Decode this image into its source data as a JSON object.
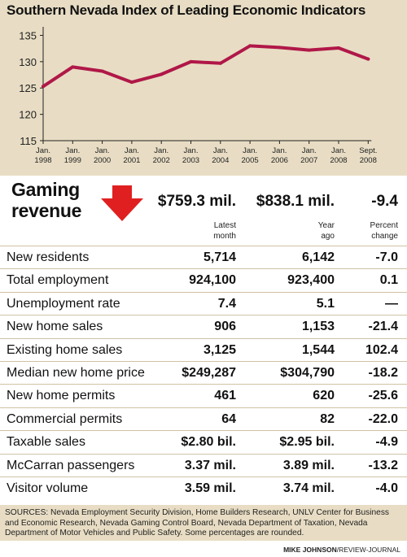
{
  "title": "Southern Nevada Index of Leading Economic Indicators",
  "chart_data": {
    "type": "line",
    "title": "Southern Nevada Index of Leading Economic Indicators",
    "x": [
      {
        "top": "Jan.",
        "bottom": "1998"
      },
      {
        "top": "Jan.",
        "bottom": "1999"
      },
      {
        "top": "Jan.",
        "bottom": "2000"
      },
      {
        "top": "Jan.",
        "bottom": "2001"
      },
      {
        "top": "Jan.",
        "bottom": "2002"
      },
      {
        "top": "Jan.",
        "bottom": "2003"
      },
      {
        "top": "Jan.",
        "bottom": "2004"
      },
      {
        "top": "Jan.",
        "bottom": "2005"
      },
      {
        "top": "Jan.",
        "bottom": "2006"
      },
      {
        "top": "Jan.",
        "bottom": "2007"
      },
      {
        "top": "Jan.",
        "bottom": "2008"
      },
      {
        "top": "Sept.",
        "bottom": "2008"
      }
    ],
    "values": [
      125.3,
      129.0,
      128.2,
      126.1,
      127.6,
      130.0,
      129.7,
      133.0,
      132.7,
      132.2,
      132.6,
      130.5
    ],
    "yticks": [
      115,
      120,
      125,
      130,
      135
    ],
    "ylim": [
      115,
      136
    ],
    "line_color": "#b01848",
    "background": "#e8ddc4",
    "grid": false
  },
  "gaming": {
    "label_line1": "Gaming",
    "label_line2": "revenue",
    "latest": "$759.3 mil.",
    "year_ago": "$838.1 mil.",
    "change": "-9.4",
    "arrow_color": "#e02020"
  },
  "columns": {
    "latest_l1": "Latest",
    "latest_l2": "month",
    "yearago_l1": "Year",
    "yearago_l2": "ago",
    "pct_l1": "Percent",
    "pct_l2": "change"
  },
  "rows": [
    {
      "label": "New residents",
      "latest": "5,714",
      "year_ago": "6,142",
      "change": "-7.0"
    },
    {
      "label": "Total employment",
      "latest": "924,100",
      "year_ago": "923,400",
      "change": "0.1"
    },
    {
      "label": "Unemployment rate",
      "latest": "7.4",
      "year_ago": "5.1",
      "change": "—"
    },
    {
      "label": "New home sales",
      "latest": "906",
      "year_ago": "1,153",
      "change": "-21.4"
    },
    {
      "label": "Existing home sales",
      "latest": "3,125",
      "year_ago": "1,544",
      "change": "102.4"
    },
    {
      "label": "Median new home price",
      "latest": "$249,287",
      "year_ago": "$304,790",
      "change": "-18.2"
    },
    {
      "label": "New home permits",
      "latest": "461",
      "year_ago": "620",
      "change": "-25.6"
    },
    {
      "label": "Commercial permits",
      "latest": "64",
      "year_ago": "82",
      "change": "-22.0"
    },
    {
      "label": "Taxable sales",
      "latest": "$2.80 bil.",
      "year_ago": "$2.95 bil.",
      "change": "-4.9"
    },
    {
      "label": "McCarran passengers",
      "latest": "3.37 mil.",
      "year_ago": "3.89 mil.",
      "change": "-13.2"
    },
    {
      "label": "Visitor volume",
      "latest": "3.59 mil.",
      "year_ago": "3.74 mil.",
      "change": "-4.0"
    }
  ],
  "sources": "SOURCES: Nevada Employment Security Division, Home Builders Research, UNLV Center for Business and Economic Research, Nevada Gaming Control Board, Nevada Department of Taxation, Nevada Department of Motor Vehicles and Public Safety. Some percentages are rounded.",
  "credit_name": "MIKE JOHNSON",
  "credit_org": "/REVIEW-JOURNAL"
}
